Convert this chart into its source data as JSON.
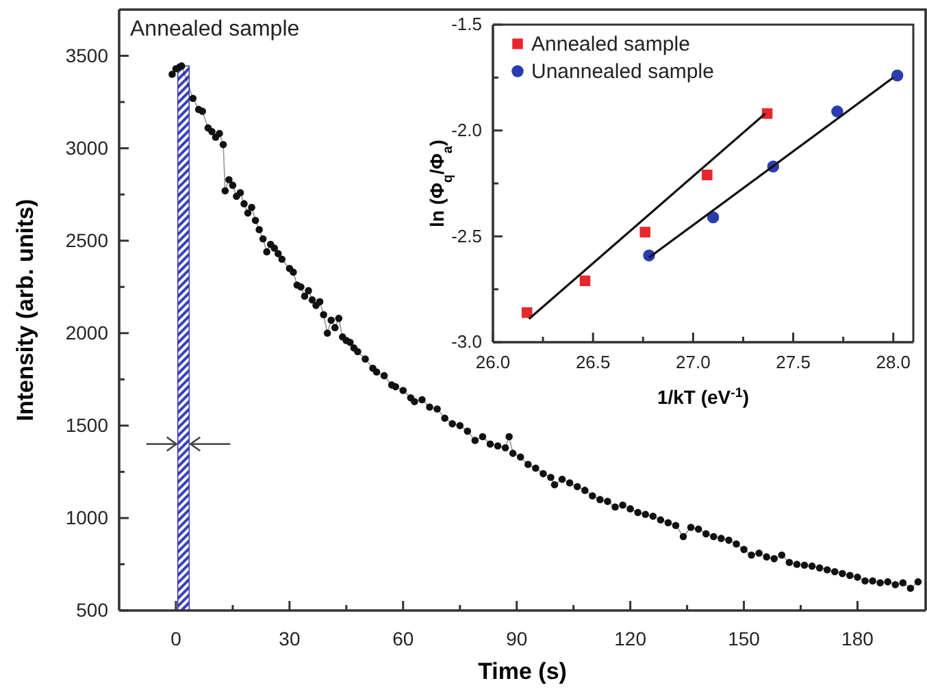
{
  "chart_data": [
    {
      "type": "line",
      "xlabel": "Time (s)",
      "ylabel": "Intensity (arb. units)",
      "annotations": [
        "Annealed sample"
      ],
      "marker": "circle",
      "xlim": [
        -15,
        198
      ],
      "ylim": [
        500,
        3750
      ],
      "xticks": [
        0,
        {
          "value": 15,
          "label": null
        },
        30,
        {
          "value": 45,
          "label": null
        },
        60,
        {
          "value": 75,
          "label": null
        },
        90,
        {
          "value": 105,
          "label": null
        },
        120,
        {
          "value": 135,
          "label": null
        },
        150,
        {
          "value": 165,
          "label": null
        },
        180
      ],
      "yticks": [
        500,
        {
          "value": 750,
          "label": null
        },
        1000,
        {
          "value": 1250,
          "label": null
        },
        1500,
        {
          "value": 1750,
          "label": null
        },
        2000,
        {
          "value": 2250,
          "label": null
        },
        2500,
        {
          "value": 2750,
          "label": null
        },
        3000,
        {
          "value": 3250,
          "label": null
        },
        3500
      ],
      "bands": [
        {
          "axis": "x",
          "from": 0.5,
          "to": 3.5,
          "color": "#3b3fb5"
        }
      ],
      "x": [
        -1,
        0,
        1,
        1.5,
        4.5,
        6,
        7,
        8.5,
        9.5,
        10.5,
        11.5,
        12.5,
        13,
        14,
        15,
        16,
        17,
        18,
        19,
        20,
        21,
        22,
        23,
        24,
        25,
        26,
        27,
        28,
        30,
        31,
        32,
        33,
        34,
        35,
        36,
        37,
        38,
        39,
        40,
        41,
        42,
        43,
        44,
        45,
        46,
        47,
        48,
        50,
        52,
        53,
        55,
        57,
        58,
        60,
        62,
        63,
        65,
        67,
        69,
        71,
        73,
        75,
        77,
        79,
        81,
        83,
        85,
        87,
        88,
        89,
        91,
        93,
        95,
        97,
        99,
        100,
        102,
        104,
        106,
        108,
        110,
        112,
        114,
        116,
        118,
        120,
        122,
        124,
        126,
        128,
        130,
        132,
        134,
        136,
        138,
        140,
        142,
        144,
        146,
        148,
        150,
        152,
        154,
        156,
        158,
        160,
        162,
        164,
        166,
        168,
        170,
        172,
        174,
        176,
        178,
        180,
        182,
        184,
        186,
        188,
        190,
        192,
        194,
        196
      ],
      "series": [
        {
          "color": "#111111",
          "values": [
            3400,
            3430,
            3440,
            3445,
            3270,
            3210,
            3200,
            3110,
            3090,
            3060,
            3080,
            3020,
            2770,
            2830,
            2800,
            2740,
            2760,
            2700,
            2650,
            2680,
            2610,
            2560,
            2510,
            2440,
            2480,
            2460,
            2430,
            2400,
            2350,
            2330,
            2260,
            2250,
            2200,
            2230,
            2180,
            2150,
            2170,
            2100,
            2000,
            2070,
            2030,
            2080,
            1980,
            1960,
            1950,
            1920,
            1900,
            1860,
            1810,
            1790,
            1770,
            1720,
            1710,
            1690,
            1650,
            1630,
            1640,
            1600,
            1590,
            1540,
            1510,
            1500,
            1470,
            1420,
            1440,
            1400,
            1390,
            1380,
            1440,
            1350,
            1330,
            1290,
            1270,
            1240,
            1220,
            1180,
            1210,
            1190,
            1170,
            1150,
            1120,
            1100,
            1090,
            1060,
            1070,
            1050,
            1030,
            1020,
            1010,
            990,
            975,
            960,
            900,
            950,
            940,
            915,
            900,
            890,
            880,
            860,
            830,
            800,
            810,
            790,
            780,
            800,
            760,
            750,
            745,
            740,
            730,
            720,
            710,
            700,
            690,
            680,
            660,
            660,
            650,
            655,
            640,
            650,
            620,
            655
          ]
        }
      ]
    },
    {
      "type": "scatter",
      "xlabel": "1/kT (eV$^{-1}$)",
      "ylabel": "ln (Φ$_{q}$/Φ$_{a}$)",
      "legend": "top left",
      "xlim": [
        26,
        28.1
      ],
      "ylim": [
        -3.0,
        -1.5
      ],
      "xticks": [
        {
          "value": 26,
          "label": "26.0"
        },
        {
          "value": 26.25,
          "label": null
        },
        26.5,
        {
          "value": 26.75,
          "label": null
        },
        {
          "value": 27,
          "label": "27.0"
        },
        {
          "value": 27.25,
          "label": null
        },
        27.5,
        {
          "value": 27.75,
          "label": null
        },
        {
          "value": 28,
          "label": "28.0"
        }
      ],
      "yticks": [
        {
          "value": -3,
          "label": "-3.0"
        },
        {
          "value": -2.75,
          "label": null
        },
        -2.5,
        {
          "value": -2.25,
          "label": null
        },
        {
          "value": -2,
          "label": "-2.0"
        },
        {
          "value": -1.75,
          "label": null
        },
        -1.5
      ],
      "series": [
        {
          "name": "Annealed sample",
          "color": "#e8272d",
          "marker": "square",
          "x": [
            26.17,
            26.46,
            26.76,
            27.07,
            27.37
          ],
          "values": [
            -2.86,
            -2.71,
            -2.48,
            -2.21,
            -1.92
          ]
        },
        {
          "name": "Unannealed sample",
          "color": "#2b3cb0",
          "marker": "circle",
          "x": [
            26.78,
            27.1,
            27.4,
            27.72,
            28.02
          ],
          "values": [
            -2.59,
            -2.41,
            -2.17,
            -1.91,
            -1.74
          ]
        },
        {
          "type": "line",
          "color": "#111111",
          "x": [
            26.18,
            27.36
          ],
          "values": [
            -2.89,
            -1.92
          ]
        },
        {
          "type": "line",
          "color": "#111111",
          "x": [
            26.78,
            28.0
          ],
          "values": [
            -2.6,
            -1.75
          ]
        }
      ]
    }
  ]
}
